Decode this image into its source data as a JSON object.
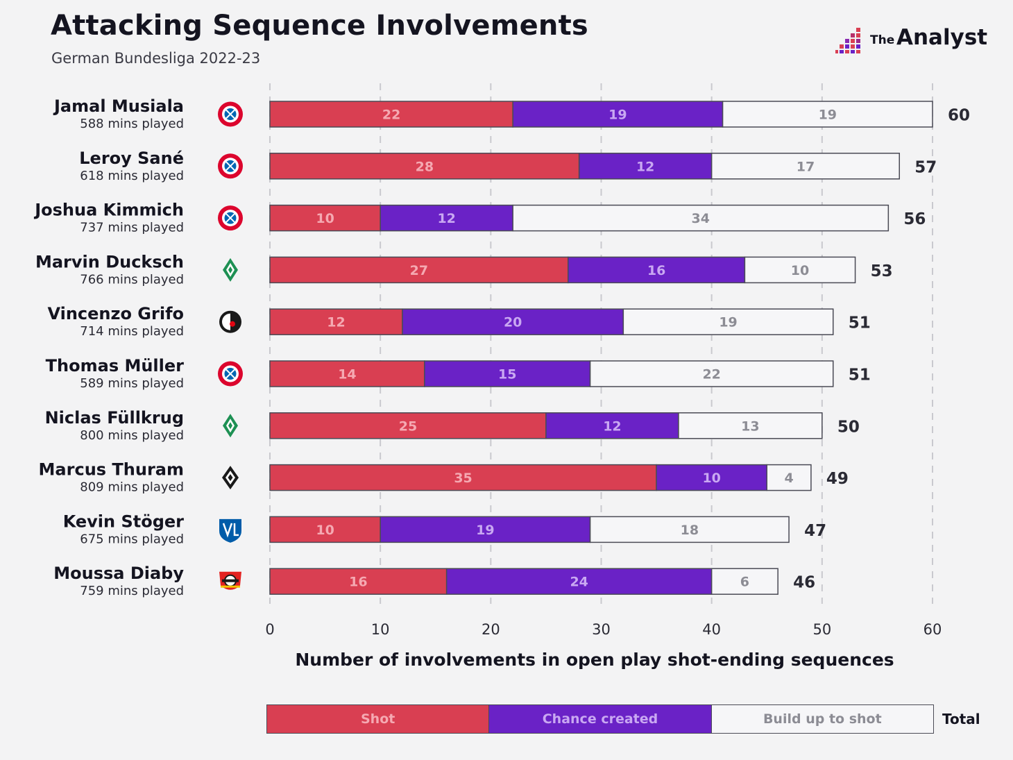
{
  "header": {
    "title": "Attacking Sequence Involvements",
    "subtitle": "German Bundesliga 2022-23",
    "brand_the": "The",
    "brand_name": "Analyst"
  },
  "colors": {
    "shot": "#d93f52",
    "chance_created": "#6a22c6",
    "build_up": "#f6f6f8",
    "text_dark": "#141420"
  },
  "chart_data": {
    "type": "bar",
    "orientation": "horizontal",
    "stacked": true,
    "xlabel": "Number of involvements in open play shot-ending sequences",
    "xlim": [
      0,
      60
    ],
    "xticks": [
      0,
      10,
      20,
      30,
      40,
      50,
      60
    ],
    "grid": "dashed vertical",
    "categories": [
      {
        "name": "Jamal Musiala",
        "mins": "588 mins played",
        "club_icon": "bayern-munich-crest"
      },
      {
        "name": "Leroy Sané",
        "mins": "618 mins played",
        "club_icon": "bayern-munich-crest"
      },
      {
        "name": "Joshua Kimmich",
        "mins": "737 mins played",
        "club_icon": "bayern-munich-crest"
      },
      {
        "name": "Marvin Ducksch",
        "mins": "766 mins played",
        "club_icon": "werder-bremen-crest"
      },
      {
        "name": "Vincenzo Grifo",
        "mins": "714 mins played",
        "club_icon": "sc-freiburg-crest"
      },
      {
        "name": "Thomas Müller",
        "mins": "589 mins played",
        "club_icon": "bayern-munich-crest"
      },
      {
        "name": "Niclas Füllkrug",
        "mins": "800 mins played",
        "club_icon": "werder-bremen-crest"
      },
      {
        "name": "Marcus Thuram",
        "mins": "809 mins played",
        "club_icon": "gladbach-crest"
      },
      {
        "name": "Kevin Stöger",
        "mins": "675 mins played",
        "club_icon": "vfl-bochum-crest"
      },
      {
        "name": "Moussa Diaby",
        "mins": "759 mins played",
        "club_icon": "bayer-leverkusen-crest"
      }
    ],
    "series": [
      {
        "name": "Shot",
        "values": [
          22,
          28,
          10,
          27,
          12,
          14,
          25,
          35,
          10,
          16
        ]
      },
      {
        "name": "Chance created",
        "values": [
          19,
          12,
          12,
          16,
          20,
          15,
          12,
          10,
          19,
          24
        ]
      },
      {
        "name": "Build up to shot",
        "values": [
          19,
          17,
          34,
          10,
          19,
          22,
          13,
          4,
          18,
          6
        ]
      }
    ],
    "totals": [
      60,
      57,
      56,
      53,
      51,
      51,
      50,
      49,
      47,
      46
    ],
    "legend": {
      "position": "bottom",
      "labels": [
        "Shot",
        "Chance created",
        "Build up to shot"
      ],
      "total_label": "Total"
    }
  }
}
